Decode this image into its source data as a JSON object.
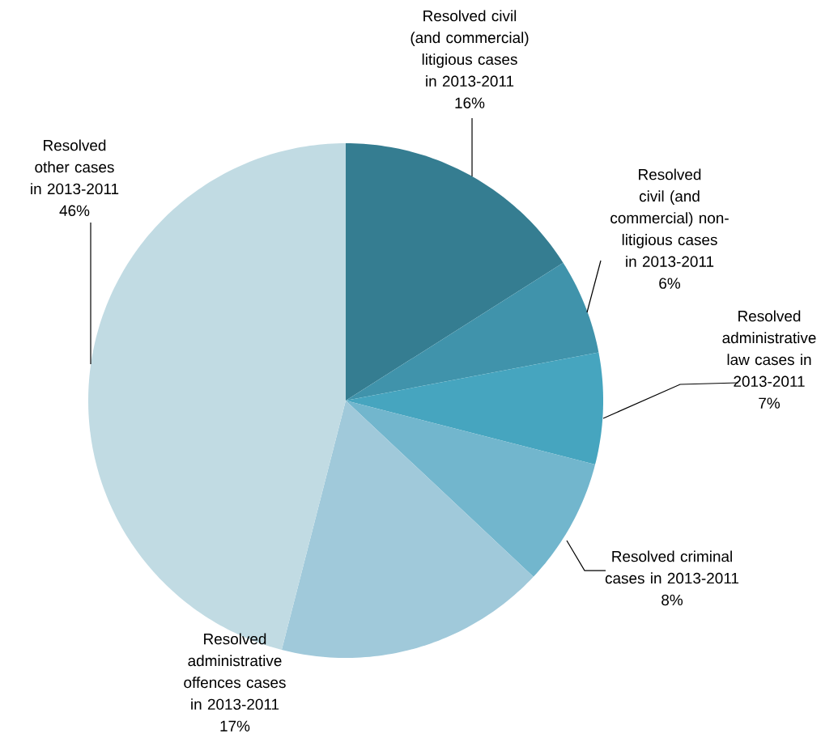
{
  "chart_data": {
    "type": "pie",
    "categories": [
      "Resolved civil (and commercial) litigious cases in 2013-2011",
      "Resolved civil (and commercial) non-litigious cases in 2013-2011",
      "Resolved administrative law cases in 2013-2011",
      "Resolved criminal cases in 2013-2011",
      "Resolved administrative offences cases in 2013-2011",
      "Resolved other cases in 2013-2011"
    ],
    "values": [
      16,
      6,
      7,
      8,
      17,
      46
    ],
    "value_labels": [
      "16%",
      "6%",
      "7%",
      "8%",
      "17%",
      "46%"
    ],
    "colors": [
      "#357d91",
      "#4093ab",
      "#46a5bf",
      "#72b6cd",
      "#a0c9da",
      "#c1dbe3"
    ]
  }
}
